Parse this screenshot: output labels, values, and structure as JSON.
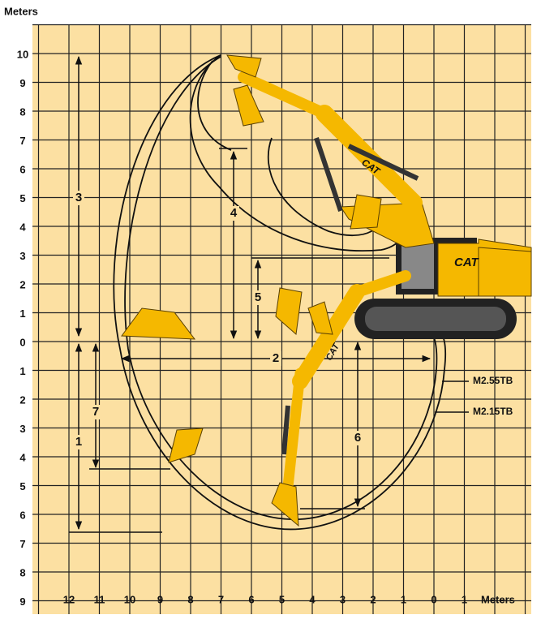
{
  "axis_labels": {
    "y": "Meters",
    "x": "Meters"
  },
  "row_labels": [
    "10",
    "9",
    "8",
    "7",
    "6",
    "5",
    "4",
    "3",
    "2",
    "1",
    "0",
    "1",
    "2",
    "3",
    "4",
    "5",
    "6",
    "7",
    "8",
    "9"
  ],
  "column_labels": [
    "12",
    "11",
    "10",
    "9",
    "8",
    "7",
    "6",
    "5",
    "4",
    "3",
    "2",
    "1",
    "0",
    "1"
  ],
  "dimensions": [
    "1",
    "2",
    "3",
    "4",
    "5",
    "6",
    "7"
  ],
  "models": [
    "M2.55TB",
    "M2.15TB"
  ],
  "brand": "CAT"
}
